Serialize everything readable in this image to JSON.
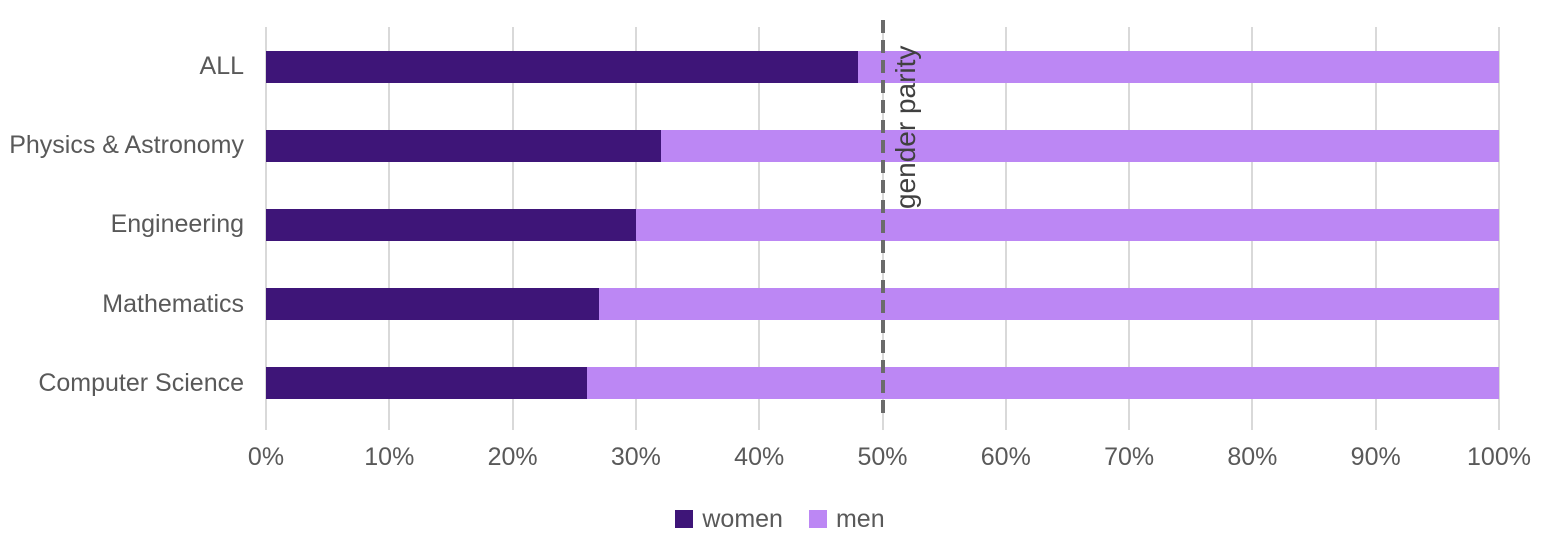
{
  "chart_data": {
    "type": "bar",
    "orientation": "horizontal",
    "stacked": true,
    "title": "",
    "xlabel": "",
    "ylabel": "",
    "categories": [
      "ALL",
      "Physics & Astronomy",
      "Engineering",
      "Mathematics",
      "Computer Science"
    ],
    "series": [
      {
        "name": "women",
        "color": "#3E1578",
        "values": [
          48,
          32,
          30,
          27,
          26
        ]
      },
      {
        "name": "men",
        "color": "#BC87F4",
        "values": [
          52,
          68,
          70,
          73,
          74
        ]
      }
    ],
    "x_axis": {
      "min": 0,
      "max": 100,
      "tick_step": 10,
      "tick_labels": [
        "0%",
        "10%",
        "20%",
        "30%",
        "40%",
        "50%",
        "60%",
        "70%",
        "80%",
        "90%",
        "100%"
      ],
      "unit": "%"
    },
    "annotation": {
      "label": "gender parity",
      "x": 50
    },
    "legend": {
      "position": "bottom-center",
      "entries": [
        "women",
        "men"
      ]
    },
    "grid": true
  },
  "colors": {
    "women": "#3E1578",
    "men": "#BC87F4",
    "gridline": "#D9D9D9",
    "axis_text": "#595959",
    "parity_line": "#6B6B6B",
    "parity_text": "#404040",
    "background": "#FFFFFF"
  }
}
